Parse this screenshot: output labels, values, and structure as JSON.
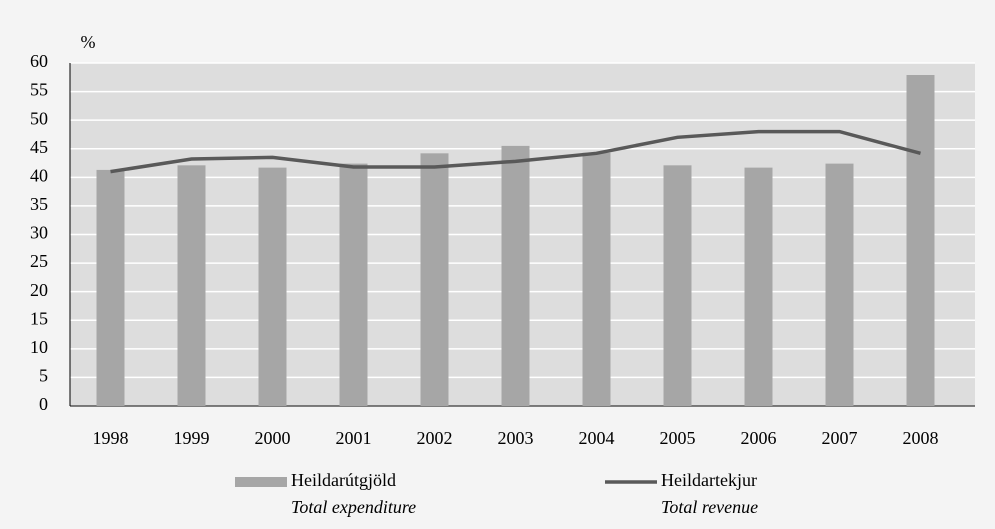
{
  "chart_data": {
    "type": "bar_line",
    "ylabel": "%",
    "categories": [
      "1998",
      "1999",
      "2000",
      "2001",
      "2002",
      "2003",
      "2004",
      "2005",
      "2006",
      "2007",
      "2008"
    ],
    "series": [
      {
        "name": "Heildarútgjöld",
        "translation": "Total expenditure",
        "type": "bar",
        "color": "#a6a6a6",
        "values": [
          41.3,
          42.1,
          41.7,
          42.4,
          44.2,
          45.5,
          44.3,
          42.1,
          41.7,
          42.4,
          57.9
        ]
      },
      {
        "name": "Heildartekjur",
        "translation": "Total revenue",
        "type": "line",
        "color": "#595959",
        "values": [
          41,
          43.2,
          43.5,
          41.8,
          41.8,
          42.8,
          44.2,
          47,
          48,
          48,
          44.2
        ]
      }
    ],
    "ylim": [
      0,
      60
    ],
    "yticks": [
      0,
      5,
      10,
      15,
      20,
      25,
      30,
      35,
      40,
      45,
      50,
      55,
      60
    ],
    "grid": true
  }
}
